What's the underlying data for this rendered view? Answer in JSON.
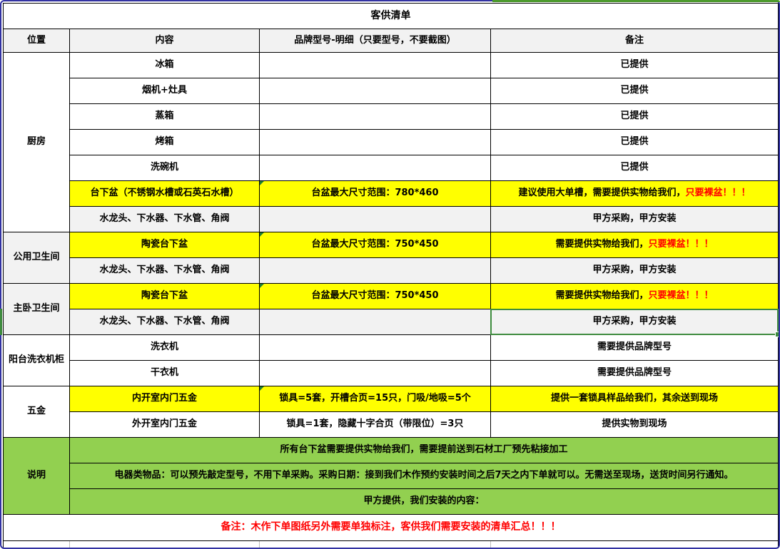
{
  "title": "客供清单",
  "header": {
    "location": "位置",
    "content": "内容",
    "brand": "品牌型号-明细（只要型号，不要截图）",
    "note": "备注"
  },
  "labels": {
    "kitchen": "厨房",
    "public_bath": "公用卫生间",
    "master_bath": "主卧卫生间",
    "balcony": "阳台洗衣机柜",
    "hardware": "五金",
    "notes": "说明"
  },
  "rows": {
    "fridge": {
      "content": "冰箱",
      "note": "已提供"
    },
    "hood": {
      "content": "烟机+灶具",
      "note": "已提供"
    },
    "steamer": {
      "content": "蒸箱",
      "note": "已提供"
    },
    "oven": {
      "content": "烤箱",
      "note": "已提供"
    },
    "dishwasher": {
      "content": "洗碗机",
      "note": "已提供"
    },
    "kitchen_sink": {
      "content": "台下盆（不锈钢水槽或石英石水槽）",
      "brand": "台盆最大尺寸范围：780*460",
      "note_black": "建议使用大单槽，需要提供实物给我们，",
      "note_red": "只要裸盆！！！"
    },
    "kitchen_faucet": {
      "content": "水龙头、下水器、下水管、角阀",
      "note": "甲方采购，甲方安装"
    },
    "public_sink": {
      "content": "陶瓷台下盆",
      "brand": "台盆最大尺寸范围：750*450",
      "note_black": "需要提供实物给我们，",
      "note_red": "只要裸盆！！！"
    },
    "public_faucet": {
      "content": "水龙头、下水器、下水管、角阀",
      "note": "甲方采购，甲方安装"
    },
    "master_sink": {
      "content": "陶瓷台下盆",
      "brand": "台盆最大尺寸范围：750*450",
      "note_black": "需要提供实物给我们，",
      "note_red": "只要裸盆！！！"
    },
    "master_faucet": {
      "content": "水龙头、下水器、下水管、角阀",
      "note": "甲方采购，甲方安装"
    },
    "washer": {
      "content": "洗衣机",
      "note": "需要提供品牌型号"
    },
    "dryer": {
      "content": "干衣机",
      "note": "需要提供品牌型号"
    },
    "inner_door": {
      "content": "内开室内门五金",
      "brand": "锁具=5套，开槽合页=15只，门吸/地吸=5个",
      "note": "提供一套锁具样品给我们，其余送到现场"
    },
    "outer_door": {
      "content": "外开室内门五金",
      "brand": "锁具=1套，隐藏十字合页（带限位）=3只",
      "note": "提供实物到现场"
    }
  },
  "notes": {
    "row1": "所有台下盆需要提供实物给我们，需要提前送到石材工厂预先粘接加工",
    "row2": "电器类物品：可以预先敲定型号，不用下单采购。采购日期：接到我们木作预约安装时间之后7天之内下单就可以。无需送至现场，送货时间另行通知。",
    "row3": "甲方提供，我们安装的内容："
  },
  "footer": {
    "text": "备注：木作下单图纸另外需要单独标注，客供我们需要安装的清单汇总！！！"
  },
  "colors": {
    "highlight_yellow": "#FFFF00",
    "section_green": "#92D050",
    "header_gray": "#F2F2F2",
    "alert_red": "#FF0000",
    "selection_green": "#3F8C3F",
    "comment_triangle_green": "#1E7E34",
    "frame_blue": "#3232A2"
  }
}
